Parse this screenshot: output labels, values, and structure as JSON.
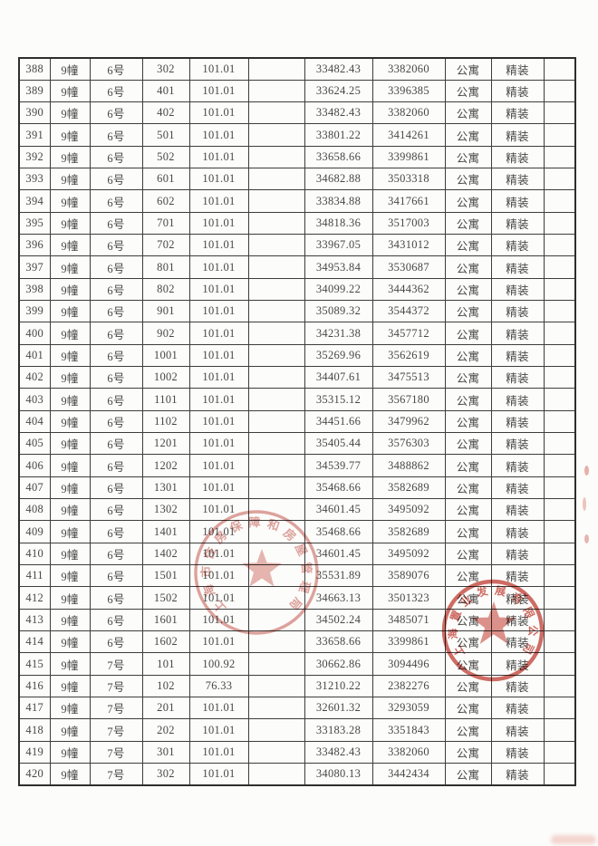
{
  "table": {
    "description": "housing unit price list continuation page, no visible header row",
    "rows": [
      [
        "388",
        "9幢",
        "6号",
        "302",
        "101.01",
        "",
        "33482.43",
        "3382060",
        "公寓",
        "精装",
        ""
      ],
      [
        "389",
        "9幢",
        "6号",
        "401",
        "101.01",
        "",
        "33624.25",
        "3396385",
        "公寓",
        "精装",
        ""
      ],
      [
        "390",
        "9幢",
        "6号",
        "402",
        "101.01",
        "",
        "33482.43",
        "3382060",
        "公寓",
        "精装",
        ""
      ],
      [
        "391",
        "9幢",
        "6号",
        "501",
        "101.01",
        "",
        "33801.22",
        "3414261",
        "公寓",
        "精装",
        ""
      ],
      [
        "392",
        "9幢",
        "6号",
        "502",
        "101.01",
        "",
        "33658.66",
        "3399861",
        "公寓",
        "精装",
        ""
      ],
      [
        "393",
        "9幢",
        "6号",
        "601",
        "101.01",
        "",
        "34682.88",
        "3503318",
        "公寓",
        "精装",
        ""
      ],
      [
        "394",
        "9幢",
        "6号",
        "602",
        "101.01",
        "",
        "33834.88",
        "3417661",
        "公寓",
        "精装",
        ""
      ],
      [
        "395",
        "9幢",
        "6号",
        "701",
        "101.01",
        "",
        "34818.36",
        "3517003",
        "公寓",
        "精装",
        ""
      ],
      [
        "396",
        "9幢",
        "6号",
        "702",
        "101.01",
        "",
        "33967.05",
        "3431012",
        "公寓",
        "精装",
        ""
      ],
      [
        "397",
        "9幢",
        "6号",
        "801",
        "101.01",
        "",
        "34953.84",
        "3530687",
        "公寓",
        "精装",
        ""
      ],
      [
        "398",
        "9幢",
        "6号",
        "802",
        "101.01",
        "",
        "34099.22",
        "3444362",
        "公寓",
        "精装",
        ""
      ],
      [
        "399",
        "9幢",
        "6号",
        "901",
        "101.01",
        "",
        "35089.32",
        "3544372",
        "公寓",
        "精装",
        ""
      ],
      [
        "400",
        "9幢",
        "6号",
        "902",
        "101.01",
        "",
        "34231.38",
        "3457712",
        "公寓",
        "精装",
        ""
      ],
      [
        "401",
        "9幢",
        "6号",
        "1001",
        "101.01",
        "",
        "35269.96",
        "3562619",
        "公寓",
        "精装",
        ""
      ],
      [
        "402",
        "9幢",
        "6号",
        "1002",
        "101.01",
        "",
        "34407.61",
        "3475513",
        "公寓",
        "精装",
        ""
      ],
      [
        "403",
        "9幢",
        "6号",
        "1101",
        "101.01",
        "",
        "35315.12",
        "3567180",
        "公寓",
        "精装",
        ""
      ],
      [
        "404",
        "9幢",
        "6号",
        "1102",
        "101.01",
        "",
        "34451.66",
        "3479962",
        "公寓",
        "精装",
        ""
      ],
      [
        "405",
        "9幢",
        "6号",
        "1201",
        "101.01",
        "",
        "35405.44",
        "3576303",
        "公寓",
        "精装",
        ""
      ],
      [
        "406",
        "9幢",
        "6号",
        "1202",
        "101.01",
        "",
        "34539.77",
        "3488862",
        "公寓",
        "精装",
        ""
      ],
      [
        "407",
        "9幢",
        "6号",
        "1301",
        "101.01",
        "",
        "35468.66",
        "3582689",
        "公寓",
        "精装",
        ""
      ],
      [
        "408",
        "9幢",
        "6号",
        "1302",
        "101.01",
        "",
        "34601.45",
        "3495092",
        "公寓",
        "精装",
        ""
      ],
      [
        "409",
        "9幢",
        "6号",
        "1401",
        "101.01",
        "",
        "35468.66",
        "3582689",
        "公寓",
        "精装",
        ""
      ],
      [
        "410",
        "9幢",
        "6号",
        "1402",
        "101.01",
        "",
        "34601.45",
        "3495092",
        "公寓",
        "精装",
        ""
      ],
      [
        "411",
        "9幢",
        "6号",
        "1501",
        "101.01",
        "",
        "35531.89",
        "3589076",
        "公寓",
        "精装",
        ""
      ],
      [
        "412",
        "9幢",
        "6号",
        "1502",
        "101.01",
        "",
        "34663.13",
        "3501323",
        "公寓",
        "精装",
        ""
      ],
      [
        "413",
        "9幢",
        "6号",
        "1601",
        "101.01",
        "",
        "34502.24",
        "3485071",
        "公寓",
        "精装",
        ""
      ],
      [
        "414",
        "9幢",
        "6号",
        "1602",
        "101.01",
        "",
        "33658.66",
        "3399861",
        "公寓",
        "精装",
        ""
      ],
      [
        "415",
        "9幢",
        "7号",
        "101",
        "100.92",
        "",
        "30662.86",
        "3094496",
        "公寓",
        "精装",
        ""
      ],
      [
        "416",
        "9幢",
        "7号",
        "102",
        "76.33",
        "",
        "31210.22",
        "2382276",
        "公寓",
        "精装",
        ""
      ],
      [
        "417",
        "9幢",
        "7号",
        "201",
        "101.01",
        "",
        "32601.32",
        "3293059",
        "公寓",
        "精装",
        ""
      ],
      [
        "418",
        "9幢",
        "7号",
        "202",
        "101.01",
        "",
        "33183.28",
        "3351843",
        "公寓",
        "精装",
        ""
      ],
      [
        "419",
        "9幢",
        "7号",
        "301",
        "101.01",
        "",
        "33482.43",
        "3382060",
        "公寓",
        "精装",
        ""
      ],
      [
        "420",
        "9幢",
        "7号",
        "302",
        "101.01",
        "",
        "34080.13",
        "3442434",
        "公寓",
        "精装",
        ""
      ]
    ]
  },
  "stamps": {
    "ink_color": "#c04a40",
    "government_seal": {
      "arc_text": "上海市住房保障和房屋管理局"
    },
    "company_seal": {
      "arc_text": "上海置业发展有限公司"
    }
  }
}
